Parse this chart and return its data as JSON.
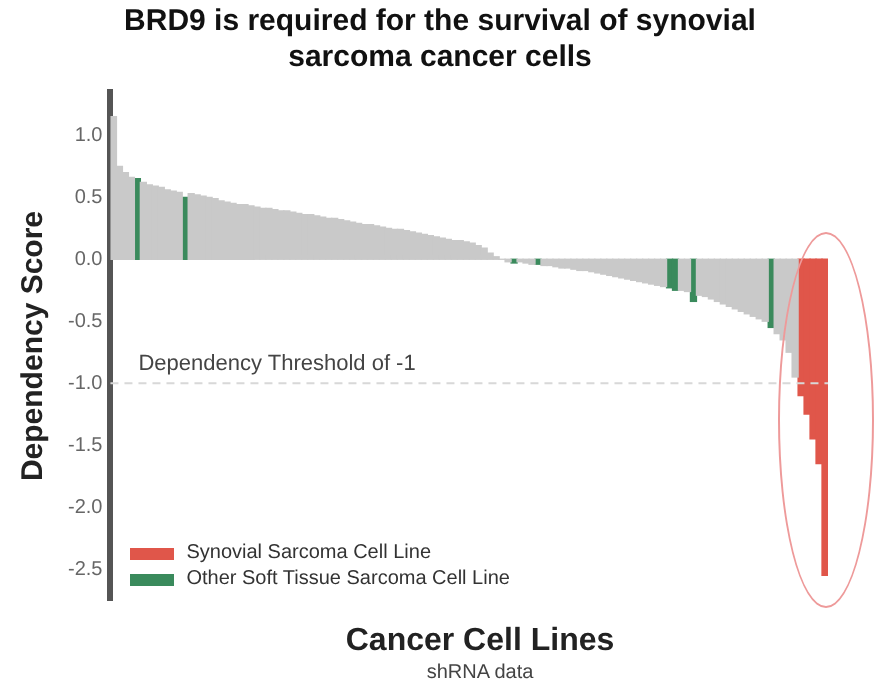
{
  "chart_data": {
    "type": "bar",
    "title": "BRD9 is required for the survival of synovial sarcoma cancer cells",
    "xlabel": "Cancer Cell Lines",
    "ylabel": "Dependency Score",
    "annotations": [
      "shRNA data"
    ],
    "categories": [
      null,
      null,
      null,
      null,
      null,
      null,
      null,
      null,
      null,
      null,
      null,
      null,
      null,
      null,
      null,
      null,
      null,
      null,
      null,
      null,
      null,
      null,
      null,
      null,
      null,
      null,
      null,
      null,
      null,
      null,
      null,
      null,
      null,
      null,
      null,
      null,
      null,
      null,
      null,
      null,
      null,
      null,
      null,
      null,
      null,
      null,
      null,
      null,
      null,
      null,
      null,
      null,
      null,
      null,
      null,
      null,
      null,
      null,
      null,
      null,
      null,
      null,
      null,
      null,
      null,
      null,
      null,
      null,
      null,
      null,
      null,
      null,
      null,
      null,
      null,
      null,
      null,
      null,
      null,
      null,
      null,
      null,
      null,
      null,
      null,
      null,
      null,
      null,
      null,
      null,
      null,
      null,
      null,
      null,
      null,
      null,
      null,
      null,
      null,
      null,
      null,
      null,
      null,
      null,
      null,
      null,
      null,
      null,
      null,
      null,
      null,
      null,
      null,
      null,
      null,
      null,
      null,
      null,
      null,
      null
    ],
    "stacked": true,
    "series": [
      {
        "color": "#c9c9c9",
        "values": [
          1.15,
          0.75,
          0.7,
          0.66,
          null,
          0.62,
          0.6,
          0.59,
          0.58,
          0.56,
          0.55,
          0.54,
          null,
          0.53,
          0.52,
          0.51,
          0.5,
          0.49,
          0.47,
          0.46,
          0.45,
          0.44,
          0.44,
          0.43,
          0.42,
          0.41,
          0.41,
          0.4,
          0.39,
          0.39,
          0.38,
          0.37,
          0.36,
          0.36,
          0.35,
          0.34,
          0.33,
          0.33,
          0.32,
          0.31,
          0.3,
          0.29,
          0.28,
          0.28,
          0.27,
          0.26,
          0.25,
          0.24,
          0.24,
          0.23,
          0.22,
          0.21,
          0.2,
          0.19,
          0.18,
          0.17,
          0.16,
          0.15,
          0.15,
          0.14,
          0.13,
          0.11,
          0.09,
          0.05,
          0.02,
          0,
          -0.02,
          null,
          -0.02,
          -0.03,
          -0.04,
          null,
          -0.05,
          -0.05,
          -0.06,
          -0.07,
          -0.07,
          -0.08,
          -0.09,
          -0.09,
          -0.1,
          -0.11,
          -0.12,
          -0.13,
          -0.14,
          -0.15,
          -0.16,
          -0.17,
          -0.18,
          -0.19,
          -0.2,
          -0.21,
          -0.22,
          null,
          null,
          -0.25,
          -0.26,
          null,
          -0.29,
          -0.3,
          -0.32,
          -0.34,
          -0.36,
          -0.38,
          -0.4,
          -0.42,
          -0.44,
          -0.46,
          -0.48,
          -0.5,
          null,
          -0.6,
          -0.65,
          -0.75,
          -0.95,
          null,
          null,
          null,
          null,
          null
        ]
      },
      {
        "name": "Synovial Sarcoma Cell Line",
        "color": "#e0564a",
        "values": [
          null,
          null,
          null,
          null,
          null,
          null,
          null,
          null,
          null,
          null,
          null,
          null,
          null,
          null,
          null,
          null,
          null,
          null,
          null,
          null,
          null,
          null,
          null,
          null,
          null,
          null,
          null,
          null,
          null,
          null,
          null,
          null,
          null,
          null,
          null,
          null,
          null,
          null,
          null,
          null,
          null,
          null,
          null,
          null,
          null,
          null,
          null,
          null,
          null,
          null,
          null,
          null,
          null,
          null,
          null,
          null,
          null,
          null,
          null,
          null,
          null,
          null,
          null,
          null,
          null,
          null,
          null,
          null,
          null,
          null,
          null,
          null,
          null,
          null,
          null,
          null,
          null,
          null,
          null,
          null,
          null,
          null,
          null,
          null,
          null,
          null,
          null,
          null,
          null,
          null,
          null,
          null,
          null,
          null,
          null,
          null,
          null,
          null,
          null,
          null,
          null,
          null,
          null,
          null,
          null,
          null,
          null,
          null,
          null,
          null,
          null,
          null,
          null,
          null,
          null,
          -1.1,
          -1.25,
          -1.45,
          -1.65,
          -2.55
        ]
      },
      {
        "name": "Other Soft Tissue Sarcoma Cell Line",
        "color": "#3a8a5c",
        "values": [
          null,
          null,
          null,
          null,
          0.65,
          null,
          null,
          null,
          null,
          null,
          null,
          null,
          0.5,
          null,
          null,
          null,
          null,
          null,
          null,
          null,
          null,
          null,
          null,
          null,
          null,
          null,
          null,
          null,
          null,
          null,
          null,
          null,
          null,
          null,
          null,
          null,
          null,
          null,
          null,
          null,
          null,
          null,
          null,
          null,
          null,
          null,
          null,
          null,
          null,
          null,
          null,
          null,
          null,
          null,
          null,
          null,
          null,
          null,
          null,
          null,
          null,
          null,
          null,
          null,
          null,
          null,
          null,
          -0.03,
          null,
          null,
          null,
          -0.04,
          null,
          null,
          null,
          null,
          null,
          null,
          null,
          null,
          null,
          null,
          null,
          null,
          null,
          null,
          null,
          null,
          null,
          null,
          null,
          null,
          null,
          -0.23,
          -0.25,
          null,
          null,
          -0.34,
          null,
          null,
          null,
          null,
          null,
          null,
          null,
          null,
          null,
          null,
          null,
          null,
          -0.55,
          null,
          null,
          null,
          null,
          null,
          null,
          null,
          null,
          null
        ]
      }
    ],
    "ylim": [
      -2.75,
      1.35
    ],
    "yticks": [
      {
        "value": 1,
        "label": "1.0"
      },
      {
        "value": 0.5,
        "label": "0.5"
      },
      {
        "value": 0,
        "label": "0.0"
      },
      {
        "value": -0.5,
        "label": "-0.5"
      },
      {
        "value": -1,
        "label": "-1.0"
      },
      {
        "value": -1.5,
        "label": "-1.5"
      },
      {
        "value": -2,
        "label": "-2.0"
      },
      {
        "value": -2.5,
        "label": "-2.5"
      }
    ],
    "ref_lines": [
      {
        "axis": "y",
        "value": -1,
        "label": "Dependency Threshold of -1",
        "color": "#d8d8d8",
        "line_style": "dashed"
      }
    ],
    "legend": "bottom left",
    "tick_labels": "y"
  }
}
